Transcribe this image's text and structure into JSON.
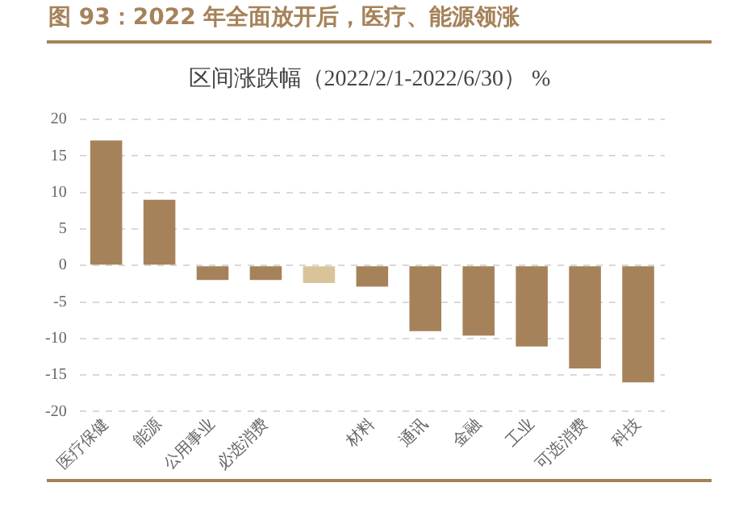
{
  "chart_data": {
    "type": "bar",
    "title": "图 93：2022 年全面放开后，医疗、能源领涨",
    "subtitle": "区间涨跌幅（2022/2/1-2022/6/30） %",
    "categories": [
      "医疗保健",
      "能源",
      "公用事业",
      "必选消费",
      null,
      "材料",
      "通讯",
      "金融",
      "工业",
      "可选消费",
      "科技"
    ],
    "values": [
      17.1,
      9.0,
      -2.0,
      -2.0,
      -2.4,
      -2.9,
      -9.0,
      -9.6,
      -11.1,
      -14.1,
      -16.0
    ],
    "colors": [
      "#a6825a",
      "#a6825a",
      "#a6825a",
      "#a6825a",
      "#d9c49a",
      "#a6825a",
      "#a6825a",
      "#a6825a",
      "#a6825a",
      "#a6825a",
      "#a6825a"
    ],
    "ylim": [
      -20,
      20
    ],
    "yticks": [
      -20,
      -15,
      -10,
      -5,
      0,
      5,
      10,
      15,
      20
    ],
    "grid": "y",
    "legend": false
  }
}
